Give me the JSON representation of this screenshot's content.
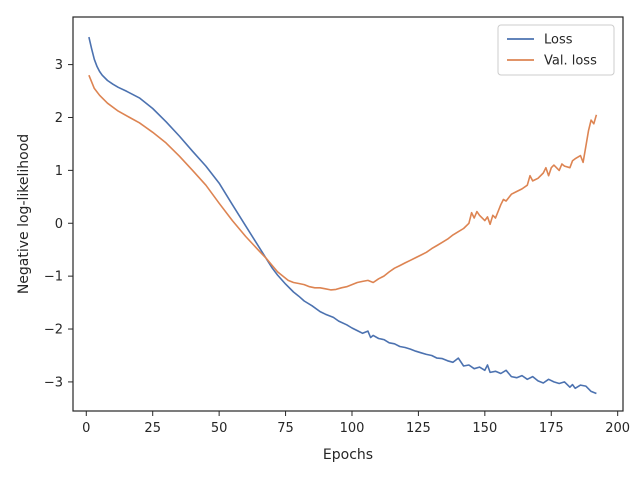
{
  "chart_data": {
    "type": "line",
    "title": "",
    "xlabel": "Epochs",
    "ylabel": "Negative log-likelihood",
    "xlim": [
      -5,
      202
    ],
    "ylim": [
      -3.55,
      3.9
    ],
    "xticks": [
      0,
      25,
      50,
      75,
      100,
      125,
      150,
      175,
      200
    ],
    "yticks": [
      -3,
      -2,
      -1,
      0,
      1,
      2,
      3
    ],
    "xtick_labels": [
      "0",
      "25",
      "50",
      "75",
      "100",
      "125",
      "150",
      "175",
      "200"
    ],
    "ytick_labels": [
      "−3",
      "−2",
      "−1",
      "0",
      "1",
      "2",
      "3"
    ],
    "grid": false,
    "legend_position": "top-right",
    "series": [
      {
        "name": "Loss",
        "color": "#4c72b0",
        "x": [
          1,
          2,
          3,
          4,
          5,
          6,
          8,
          10,
          12,
          15,
          20,
          25,
          30,
          35,
          40,
          45,
          50,
          55,
          60,
          65,
          70,
          72,
          75,
          78,
          80,
          82,
          85,
          88,
          90,
          93,
          95,
          98,
          100,
          102,
          104,
          106,
          107,
          108,
          110,
          112,
          114,
          116,
          118,
          120,
          122,
          124,
          126,
          128,
          130,
          132,
          134,
          136,
          138,
          140,
          142,
          144,
          146,
          148,
          150,
          151,
          152,
          154,
          156,
          158,
          160,
          162,
          164,
          166,
          168,
          170,
          172,
          174,
          176,
          178,
          180,
          182,
          183,
          184,
          186,
          188,
          190,
          192
        ],
        "values": [
          3.52,
          3.3,
          3.1,
          2.97,
          2.87,
          2.8,
          2.7,
          2.63,
          2.57,
          2.5,
          2.37,
          2.17,
          1.92,
          1.65,
          1.36,
          1.08,
          0.76,
          0.35,
          -0.05,
          -0.45,
          -0.85,
          -0.98,
          -1.15,
          -1.3,
          -1.38,
          -1.47,
          -1.56,
          -1.67,
          -1.72,
          -1.78,
          -1.85,
          -1.92,
          -1.98,
          -2.03,
          -2.08,
          -2.04,
          -2.16,
          -2.12,
          -2.18,
          -2.2,
          -2.26,
          -2.28,
          -2.33,
          -2.35,
          -2.38,
          -2.42,
          -2.45,
          -2.48,
          -2.5,
          -2.55,
          -2.56,
          -2.6,
          -2.63,
          -2.55,
          -2.7,
          -2.68,
          -2.75,
          -2.72,
          -2.78,
          -2.68,
          -2.82,
          -2.8,
          -2.84,
          -2.78,
          -2.9,
          -2.92,
          -2.88,
          -2.95,
          -2.9,
          -2.98,
          -3.02,
          -2.95,
          -3.0,
          -3.03,
          -3.0,
          -3.1,
          -3.05,
          -3.12,
          -3.06,
          -3.08,
          -3.18,
          -3.22
        ]
      },
      {
        "name": "Val. loss",
        "color": "#dd8452",
        "x": [
          1,
          3,
          5,
          8,
          12,
          16,
          20,
          25,
          30,
          35,
          40,
          45,
          50,
          55,
          60,
          65,
          68,
          70,
          72,
          74,
          76,
          78,
          80,
          82,
          84,
          86,
          88,
          90,
          92,
          94,
          96,
          98,
          100,
          102,
          104,
          106,
          108,
          110,
          112,
          114,
          116,
          118,
          120,
          122,
          124,
          126,
          128,
          130,
          132,
          134,
          136,
          138,
          140,
          142,
          144,
          145,
          146,
          147,
          148,
          150,
          151,
          152,
          153,
          154,
          156,
          157,
          158,
          160,
          162,
          164,
          166,
          167,
          168,
          170,
          172,
          173,
          174,
          175,
          176,
          178,
          179,
          180,
          182,
          183,
          184,
          186,
          187,
          188,
          189,
          190,
          191,
          192
        ],
        "values": [
          2.8,
          2.55,
          2.42,
          2.27,
          2.12,
          2.01,
          1.9,
          1.72,
          1.52,
          1.27,
          1.0,
          0.72,
          0.38,
          0.05,
          -0.25,
          -0.52,
          -0.68,
          -0.8,
          -0.92,
          -1.0,
          -1.08,
          -1.12,
          -1.14,
          -1.16,
          -1.2,
          -1.22,
          -1.22,
          -1.24,
          -1.26,
          -1.25,
          -1.22,
          -1.2,
          -1.16,
          -1.12,
          -1.1,
          -1.08,
          -1.12,
          -1.05,
          -1.0,
          -0.92,
          -0.85,
          -0.8,
          -0.75,
          -0.7,
          -0.65,
          -0.6,
          -0.55,
          -0.48,
          -0.42,
          -0.36,
          -0.3,
          -0.22,
          -0.16,
          -0.1,
          0.0,
          0.2,
          0.1,
          0.22,
          0.15,
          0.05,
          0.12,
          -0.02,
          0.15,
          0.1,
          0.35,
          0.45,
          0.42,
          0.55,
          0.6,
          0.65,
          0.72,
          0.9,
          0.8,
          0.85,
          0.95,
          1.05,
          0.9,
          1.05,
          1.1,
          1.0,
          1.12,
          1.08,
          1.05,
          1.18,
          1.22,
          1.28,
          1.15,
          1.45,
          1.75,
          1.95,
          1.88,
          2.05
        ]
      }
    ]
  }
}
